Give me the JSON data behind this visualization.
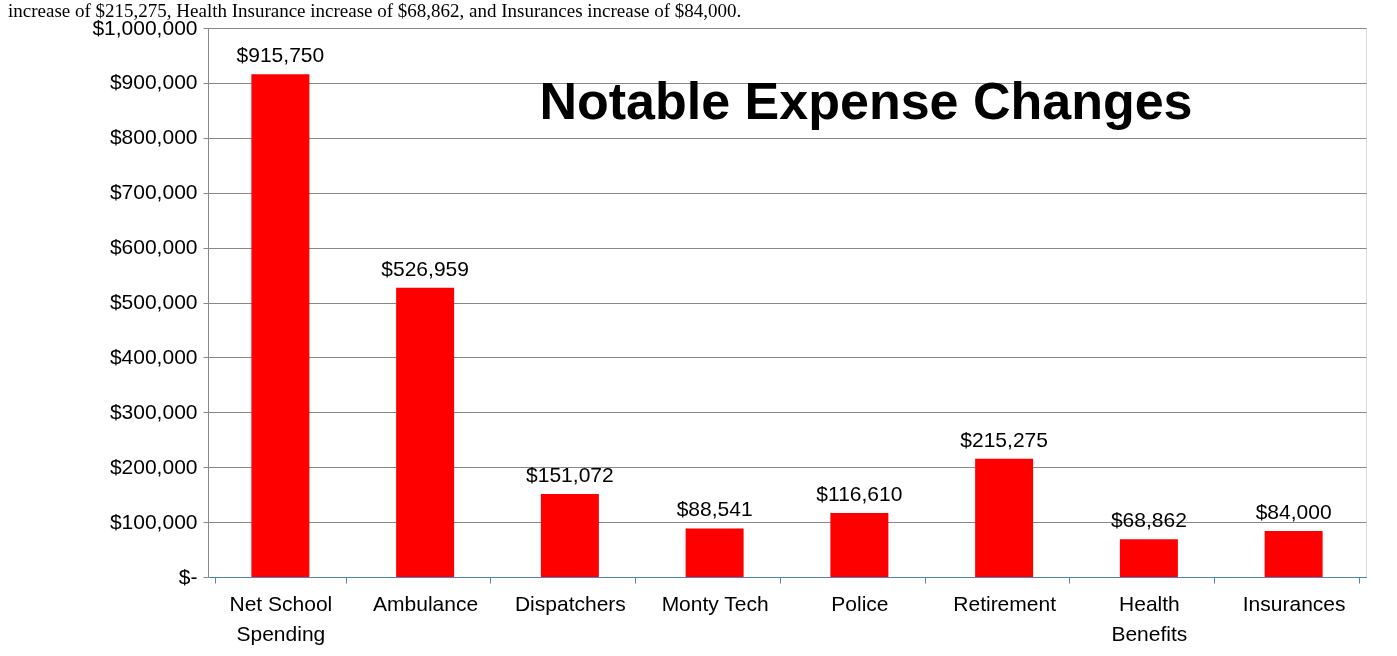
{
  "chart_data": {
    "type": "bar",
    "title": "Notable Expense Changes",
    "annotations": [
      "increase of $215,275, Health Insurance increase of $68,862, and Insurances increase of $84,000."
    ],
    "categories": [
      "Net School Spending",
      "Ambulance",
      "Dispatchers",
      "Monty Tech",
      "Police",
      "Retirement",
      "Health Benefits",
      "Insurances"
    ],
    "values": [
      915750,
      526959,
      151072,
      88541,
      116610,
      215275,
      68862,
      84000
    ],
    "value_labels": [
      "$915,750",
      "$526,959",
      "$151,072",
      "$88,541",
      "$116,610",
      "$215,275",
      "$68,862",
      "$84,000"
    ],
    "color": "#ff0000",
    "ylim": [
      0,
      1000000
    ],
    "yticks": [
      {
        "value": 0,
        "label": "$-"
      },
      {
        "value": 100000,
        "label": "$100,000"
      },
      {
        "value": 200000,
        "label": "$200,000"
      },
      {
        "value": 300000,
        "label": "$300,000"
      },
      {
        "value": 400000,
        "label": "$400,000"
      },
      {
        "value": 500000,
        "label": "$500,000"
      },
      {
        "value": 600000,
        "label": "$600,000"
      },
      {
        "value": 700000,
        "label": "$700,000"
      },
      {
        "value": 800000,
        "label": "$800,000"
      },
      {
        "value": 900000,
        "label": "$900,000"
      },
      {
        "value": 1000000,
        "label": "$1,000,000"
      }
    ],
    "grid": "y"
  }
}
